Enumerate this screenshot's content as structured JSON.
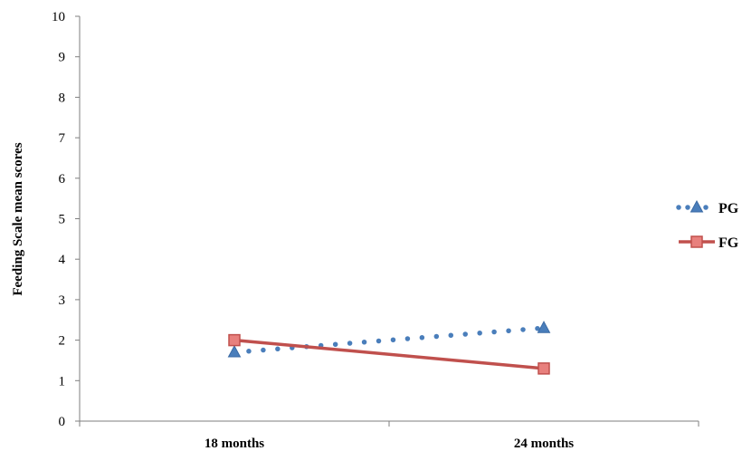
{
  "chart_data": {
    "type": "line",
    "categories": [
      "18 months",
      "24 months"
    ],
    "series": [
      {
        "name": "PG",
        "values": [
          1.7,
          2.3
        ],
        "color": "#4a7ebb",
        "style": "dotted",
        "marker": "triangle"
      },
      {
        "name": "FG",
        "values": [
          2.0,
          1.3
        ],
        "color": "#c0504d",
        "style": "solid",
        "marker": "square"
      }
    ],
    "ylabel": "Feeding Scale mean scores",
    "xlabel": "",
    "ylim": [
      0,
      10
    ],
    "yticks": [
      "0",
      "1",
      "2",
      "3",
      "4",
      "5",
      "6",
      "7",
      "8",
      "9",
      "10"
    ],
    "grid": false,
    "legend_position": "right"
  }
}
